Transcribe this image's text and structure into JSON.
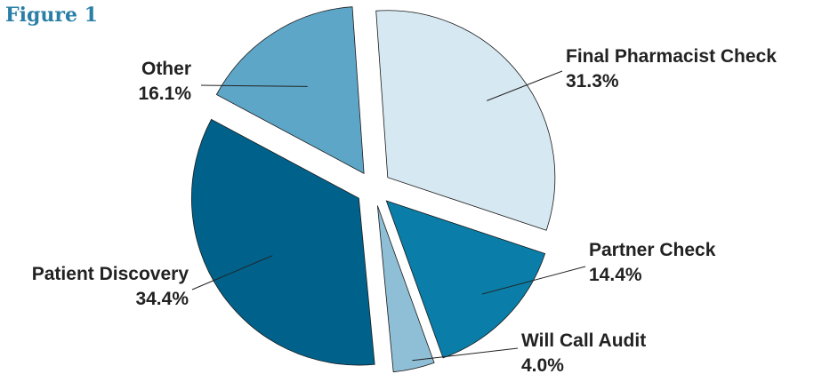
{
  "figure": {
    "title": "Figure 1"
  },
  "chart_data": {
    "type": "pie",
    "title": "",
    "slices": [
      {
        "name": "Final Pharmacist Check",
        "value": 31.3,
        "label": "31.3%",
        "color": "#d6e8f1"
      },
      {
        "name": "Partner Check",
        "value": 14.4,
        "label": "14.4%",
        "color": "#0a7ea8"
      },
      {
        "name": "Will Call Audit",
        "value": 4.0,
        "label": "4.0%",
        "color": "#8fbfd6"
      },
      {
        "name": "Patient Discovery",
        "value": 34.4,
        "label": "34.4%",
        "color": "#00628b"
      },
      {
        "name": "Other",
        "value": 16.1,
        "label": "16.1%",
        "color": "#5ea6c8"
      }
    ],
    "legend": "none",
    "exploded": true
  }
}
